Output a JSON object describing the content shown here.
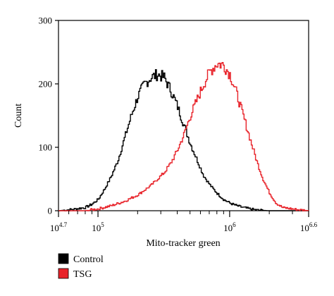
{
  "chart_data": {
    "type": "line",
    "title": "",
    "xlabel": "Mito-tracker green",
    "ylabel": "Count",
    "x_scale": "log10",
    "xlim": [
      4.7,
      6.6
    ],
    "ylim": [
      0,
      300
    ],
    "x_ticks": [
      {
        "x": 4.7,
        "base": "10",
        "exp": "4.7"
      },
      {
        "x": 5,
        "base": "10",
        "exp": "5"
      },
      {
        "x": 6,
        "base": "10",
        "exp": "6"
      },
      {
        "x": 6.6,
        "base": "10",
        "exp": "6.6"
      }
    ],
    "y_ticks": [
      {
        "y": 0,
        "label": "0"
      },
      {
        "y": 100,
        "label": "100"
      },
      {
        "y": 200,
        "label": "200"
      },
      {
        "y": 300,
        "label": "300"
      }
    ],
    "grid": false,
    "legend_position": "bottom-left",
    "series": [
      {
        "name": "Control",
        "color": "#000000",
        "x": [
          4.7,
          4.8,
          4.9,
          4.95,
          5.0,
          5.05,
          5.1,
          5.15,
          5.2,
          5.25,
          5.3,
          5.35,
          5.4,
          5.45,
          5.5,
          5.55,
          5.6,
          5.65,
          5.7,
          5.75,
          5.8,
          5.85,
          5.9,
          5.95,
          6.0,
          6.05,
          6.1,
          6.15,
          6.2,
          6.3
        ],
        "y": [
          0,
          2,
          5,
          10,
          18,
          35,
          55,
          80,
          115,
          150,
          180,
          200,
          210,
          215,
          210,
          190,
          165,
          135,
          105,
          80,
          55,
          40,
          28,
          18,
          12,
          8,
          5,
          3,
          1,
          0
        ]
      },
      {
        "name": "TSG",
        "color": "#e8232a",
        "x": [
          4.9,
          5.0,
          5.1,
          5.2,
          5.3,
          5.4,
          5.45,
          5.5,
          5.55,
          5.6,
          5.65,
          5.7,
          5.75,
          5.8,
          5.85,
          5.9,
          5.95,
          6.0,
          6.05,
          6.1,
          6.15,
          6.2,
          6.25,
          6.3,
          6.35,
          6.4,
          6.5,
          6.6
        ],
        "y": [
          0,
          3,
          8,
          15,
          25,
          40,
          50,
          60,
          75,
          95,
          120,
          150,
          175,
          200,
          220,
          232,
          230,
          215,
          185,
          150,
          115,
          80,
          50,
          28,
          12,
          5,
          2,
          0
        ]
      }
    ]
  }
}
